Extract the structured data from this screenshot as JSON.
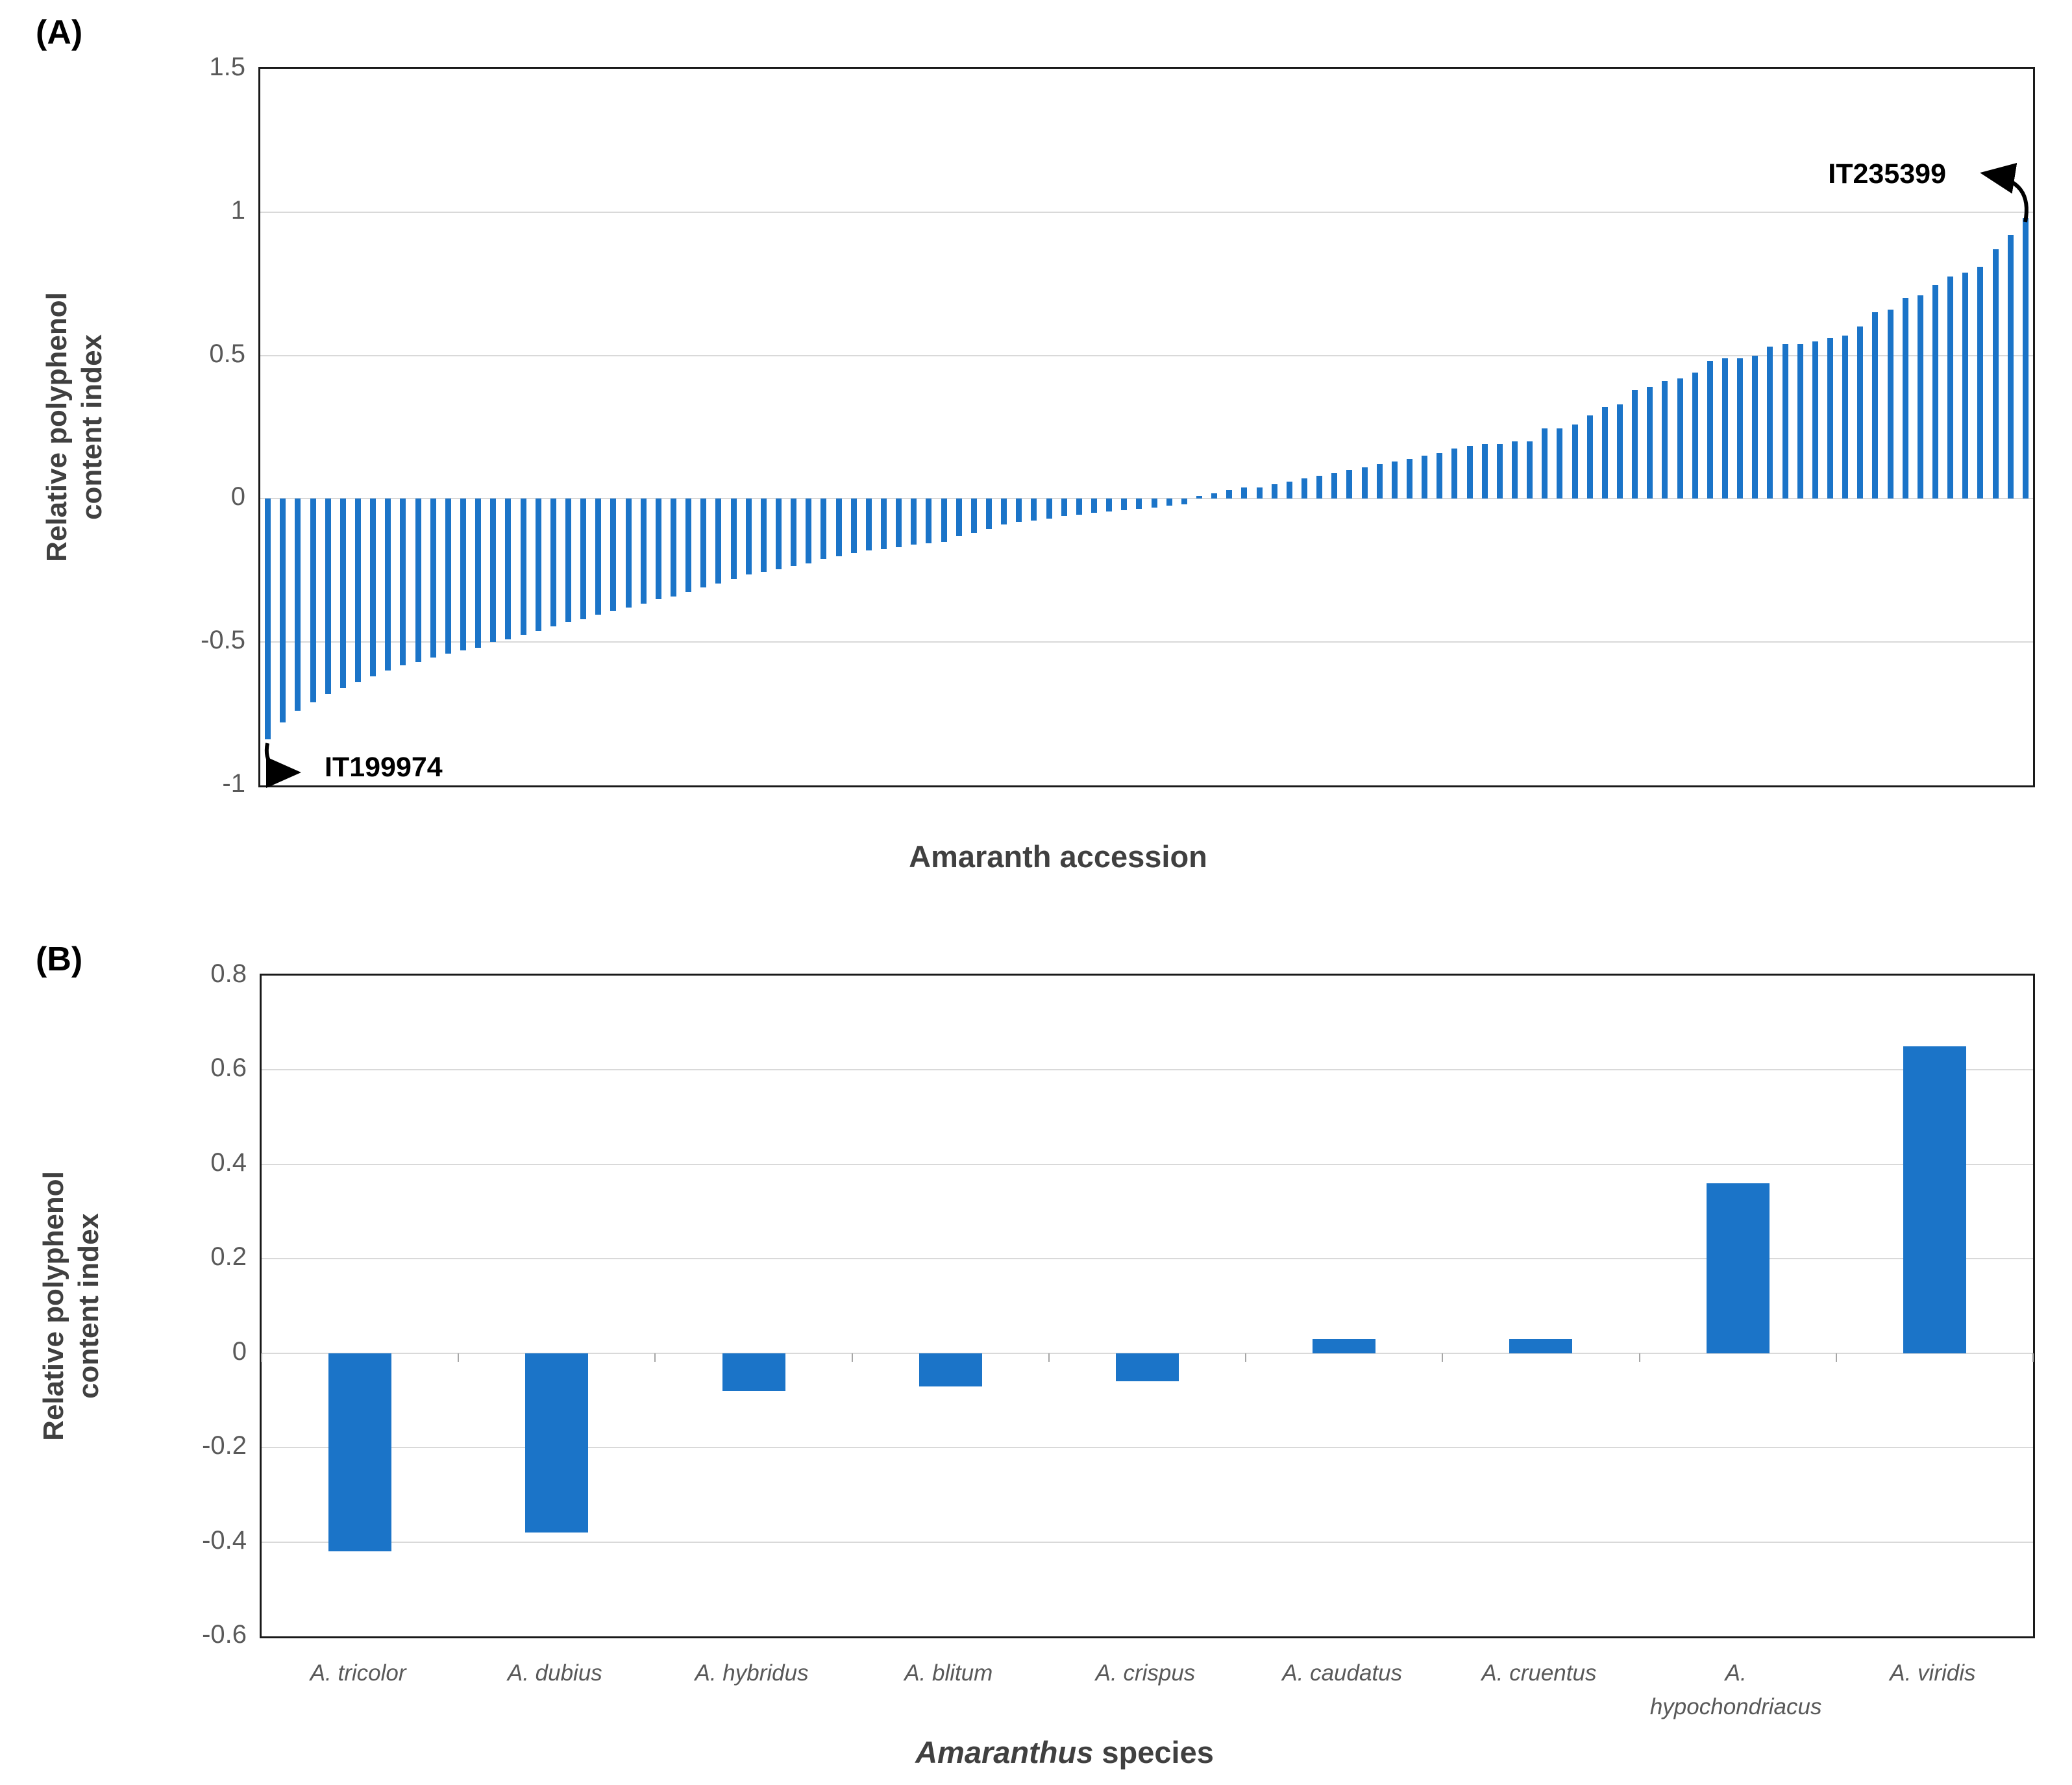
{
  "panels": {
    "a_label": "(A)",
    "b_label": "(B)"
  },
  "colors": {
    "bar": "#1b74c8",
    "gridline": "#d9d9d9",
    "axis_border": "#1a1a1a",
    "tick_text": "#595959",
    "title_text": "#404040",
    "annotation_text": "#000000"
  },
  "chart_data": [
    {
      "type": "bar",
      "title": "",
      "xlabel": "Amaranth accession",
      "ylabel": "Relative polyphenol content index",
      "ylabel_lines": [
        "Relative polyphenol",
        "content index"
      ],
      "ylim": [
        -1,
        1.5
      ],
      "yticks": [
        "1.5",
        "1",
        "0.5",
        "0",
        "-0.5",
        "-1"
      ],
      "grid": true,
      "legend": "none",
      "bar_color": "#1b74c8",
      "annotations": [
        {
          "label": "IT199974",
          "target": "lowest-bar",
          "value": -0.84
        },
        {
          "label": "IT235399",
          "target": "highest-bar",
          "value": 0.98
        }
      ],
      "n_bars": 118,
      "values": [
        -0.84,
        -0.78,
        -0.74,
        -0.71,
        -0.68,
        -0.66,
        -0.64,
        -0.62,
        -0.6,
        -0.58,
        -0.57,
        -0.555,
        -0.54,
        -0.53,
        -0.52,
        -0.5,
        -0.49,
        -0.475,
        -0.46,
        -0.445,
        -0.43,
        -0.42,
        -0.405,
        -0.39,
        -0.38,
        -0.365,
        -0.35,
        -0.34,
        -0.325,
        -0.31,
        -0.295,
        -0.28,
        -0.265,
        -0.255,
        -0.245,
        -0.235,
        -0.225,
        -0.21,
        -0.2,
        -0.19,
        -0.18,
        -0.175,
        -0.17,
        -0.16,
        -0.155,
        -0.15,
        -0.13,
        -0.12,
        -0.105,
        -0.09,
        -0.08,
        -0.075,
        -0.07,
        -0.06,
        -0.055,
        -0.05,
        -0.045,
        -0.04,
        -0.035,
        -0.03,
        -0.025,
        -0.02,
        0.01,
        0.02,
        0.03,
        0.04,
        0.04,
        0.05,
        0.06,
        0.07,
        0.08,
        0.09,
        0.1,
        0.11,
        0.12,
        0.13,
        0.14,
        0.15,
        0.16,
        0.175,
        0.185,
        0.19,
        0.19,
        0.2,
        0.2,
        0.245,
        0.245,
        0.26,
        0.29,
        0.32,
        0.33,
        0.38,
        0.39,
        0.41,
        0.42,
        0.44,
        0.48,
        0.49,
        0.49,
        0.5,
        0.53,
        0.54,
        0.54,
        0.55,
        0.56,
        0.57,
        0.6,
        0.65,
        0.66,
        0.7,
        0.71,
        0.745,
        0.775,
        0.79,
        0.81,
        0.87,
        0.92,
        0.98
      ]
    },
    {
      "type": "bar",
      "title": "",
      "xlabel_italic": "Amaranthus",
      "xlabel_rest": " species",
      "ylabel": "Relative polyphenol content index",
      "ylabel_lines": [
        "Relative polyphenol",
        "content index"
      ],
      "ylim": [
        -0.6,
        0.8
      ],
      "yticks": [
        "0.8",
        "0.6",
        "0.4",
        "0.2",
        "0",
        "-0.2",
        "-0.4",
        "-0.6"
      ],
      "grid": true,
      "legend": "none",
      "bar_color": "#1b74c8",
      "categories": [
        "A. tricolor",
        "A. dubius",
        "A. hybridus",
        "A. blitum",
        "A. crispus",
        "A. caudatus",
        "A. cruentus",
        "A.\nhypochondriacus",
        "A. viridis"
      ],
      "values": [
        -0.42,
        -0.38,
        -0.08,
        -0.07,
        -0.06,
        0.03,
        0.03,
        0.36,
        0.65
      ]
    }
  ]
}
